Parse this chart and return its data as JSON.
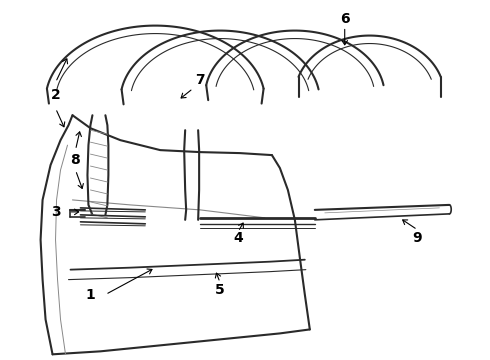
{
  "bg_color": "#ffffff",
  "line_color": "#2a2a2a",
  "label_color": "#000000",
  "label_fontsize": 10,
  "fig_width": 4.9,
  "fig_height": 3.6,
  "dpi": 100
}
